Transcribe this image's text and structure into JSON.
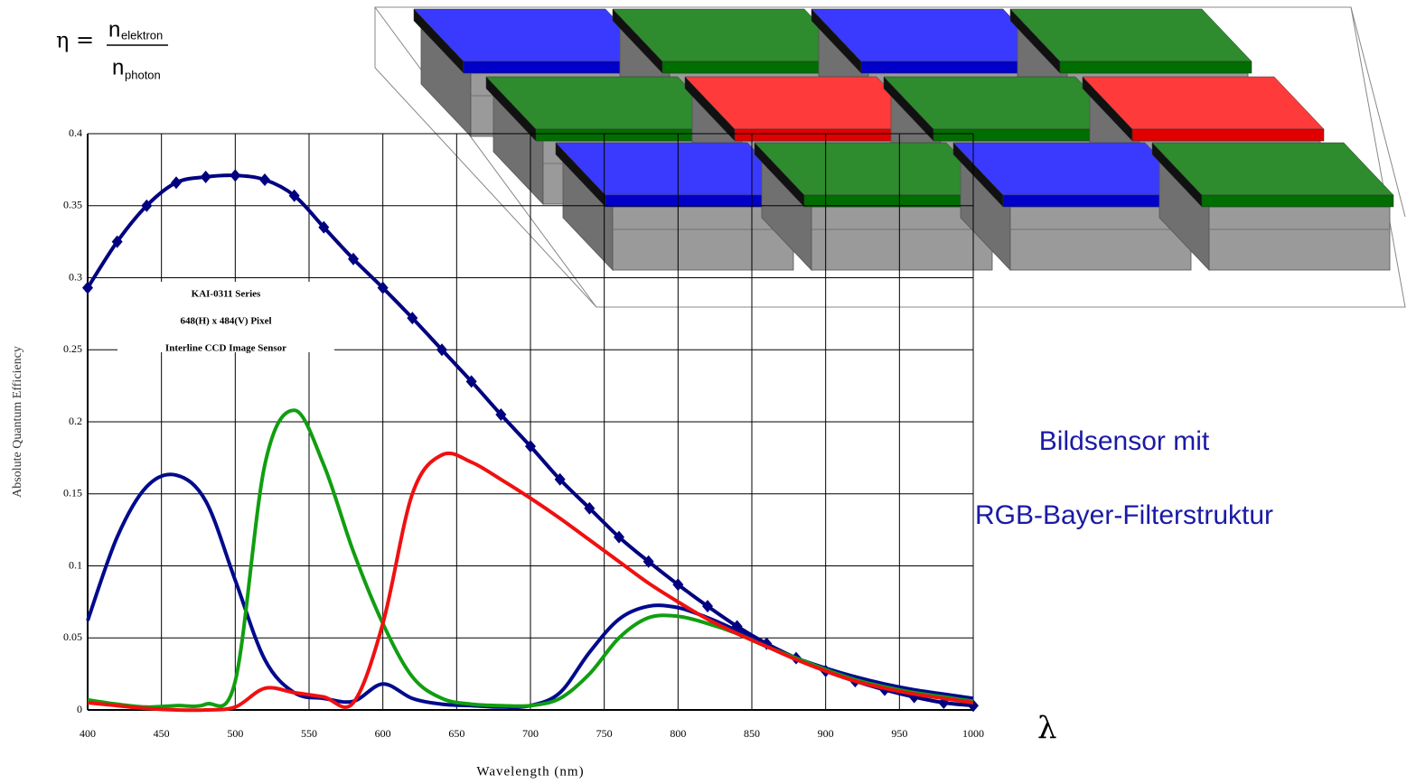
{
  "formula": {
    "lhs": "η =",
    "numerator": "n",
    "numerator_sub": "elektron",
    "denominator": "n",
    "denominator_sub": "photon"
  },
  "caption": [
    "Bildsensor mit",
    "RGB-Bayer-Filterstruktur"
  ],
  "lambda": "λ",
  "chart_data": {
    "type": "line",
    "xlabel": "Wavelength (nm)",
    "ylabel": "Absolute Quantum Efficiency",
    "annotations": [
      "KAI-0311 Series",
      "648(H) x 484(V) Pixel",
      "Interline CCD Image Sensor"
    ],
    "x": [
      400,
      420,
      440,
      460,
      480,
      500,
      520,
      540,
      560,
      580,
      600,
      620,
      640,
      660,
      680,
      700,
      720,
      740,
      760,
      780,
      800,
      820,
      840,
      860,
      880,
      900,
      920,
      940,
      960,
      980,
      1000
    ],
    "series": [
      {
        "color": "#000080",
        "markers": true,
        "values": [
          0.293,
          0.325,
          0.35,
          0.366,
          0.37,
          0.371,
          0.368,
          0.357,
          0.335,
          0.313,
          0.293,
          0.272,
          0.25,
          0.228,
          0.205,
          0.183,
          0.16,
          0.14,
          0.12,
          0.103,
          0.087,
          0.072,
          0.058,
          0.046,
          0.036,
          0.027,
          0.02,
          0.014,
          0.009,
          0.005,
          0.003
        ]
      },
      {
        "color": "#000a8c",
        "markers": false,
        "values": [
          0.062,
          0.12,
          0.155,
          0.163,
          0.145,
          0.09,
          0.035,
          0.012,
          0.008,
          0.006,
          0.018,
          0.008,
          0.004,
          0.003,
          0.002,
          0.003,
          0.012,
          0.04,
          0.063,
          0.072,
          0.071,
          0.064,
          0.055,
          0.045,
          0.036,
          0.029,
          0.023,
          0.018,
          0.014,
          0.011,
          0.008
        ]
      },
      {
        "color": "#109e10",
        "markers": false,
        "values": [
          0.007,
          0.004,
          0.002,
          0.003,
          0.004,
          0.02,
          0.17,
          0.208,
          0.17,
          0.11,
          0.06,
          0.023,
          0.008,
          0.004,
          0.003,
          0.003,
          0.008,
          0.025,
          0.05,
          0.064,
          0.065,
          0.06,
          0.053,
          0.044,
          0.036,
          0.028,
          0.021,
          0.016,
          0.012,
          0.009,
          0.006
        ]
      },
      {
        "color": "#f01010",
        "markers": false,
        "values": [
          0.005,
          0.003,
          0.001,
          0,
          0,
          0.002,
          0.015,
          0.012,
          0.009,
          0.005,
          0.06,
          0.15,
          0.177,
          0.172,
          0.16,
          0.147,
          0.133,
          0.118,
          0.103,
          0.088,
          0.075,
          0.063,
          0.053,
          0.044,
          0.035,
          0.027,
          0.02,
          0.015,
          0.011,
          0.008,
          0.005
        ]
      }
    ],
    "xlim": [
      400,
      1000
    ],
    "ylim": [
      0,
      0.4
    ],
    "xticks": [
      400,
      450,
      500,
      550,
      600,
      650,
      700,
      750,
      800,
      850,
      900,
      950,
      1000
    ],
    "yticks": [
      0,
      0.05,
      0.1,
      0.15,
      0.2,
      0.25,
      0.3,
      0.35,
      0.4
    ],
    "grid": true
  }
}
